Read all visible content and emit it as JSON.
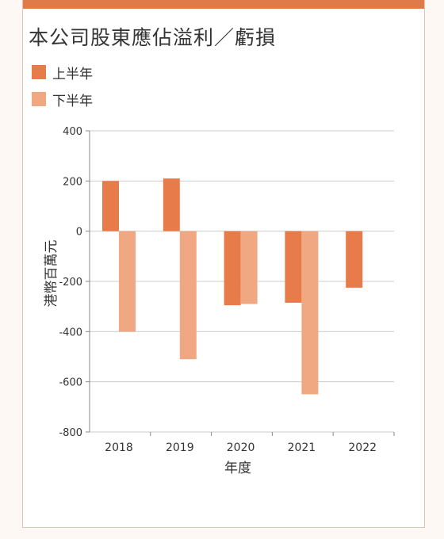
{
  "colors": {
    "accent": "#e07a48",
    "series1": "#e87b4a",
    "series2": "#f0a883",
    "grid": "#cccccc"
  },
  "chart_data": {
    "type": "bar",
    "title": "本公司股東應佔溢利／虧損",
    "xlabel": "年度",
    "ylabel": "港幣百萬元",
    "categories": [
      "2018",
      "2019",
      "2020",
      "2021",
      "2022"
    ],
    "ylim": [
      -800,
      400
    ],
    "yticks": [
      400,
      200,
      0,
      -200,
      -400,
      -600,
      -800
    ],
    "grid": true,
    "legend_position": "top-left",
    "series": [
      {
        "name": "上半年",
        "color": "#e87b4a",
        "values": [
          200,
          210,
          -295,
          -285,
          -225
        ]
      },
      {
        "name": "下半年",
        "color": "#f0a883",
        "values": [
          -400,
          -510,
          -290,
          -650,
          null
        ]
      }
    ]
  }
}
